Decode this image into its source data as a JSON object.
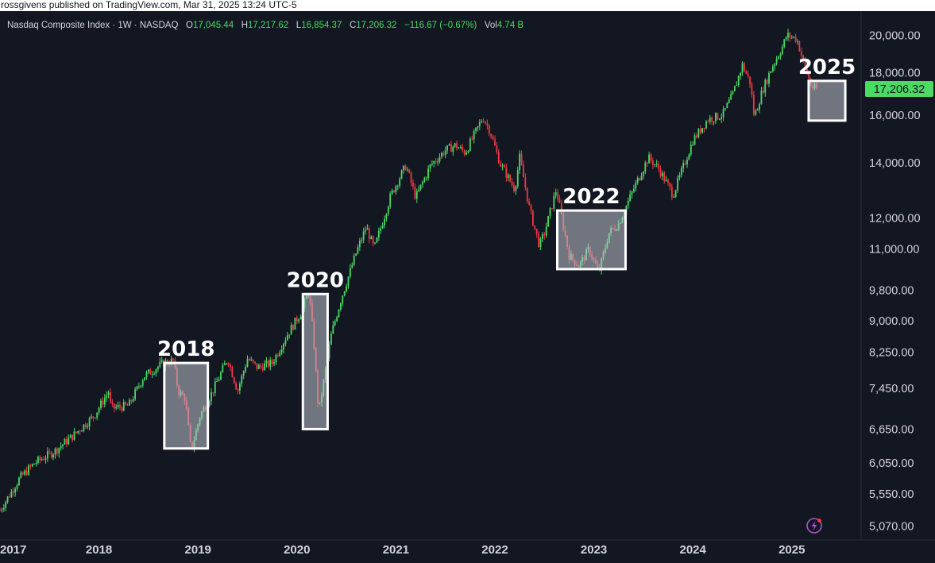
{
  "header": {
    "published": "rossgivens published on TradingView.com, Mar 31, 2025 13:24 UTC-5"
  },
  "legend": {
    "symbol": "Nasdaq Composite Index · 1W · NASDAQ",
    "o_key": "O",
    "o_val": "17,045.44",
    "h_key": "H",
    "h_val": "17,217.62",
    "l_key": "L",
    "l_val": "16,854.37",
    "c_key": "C",
    "c_val": "17,206.32",
    "change": "−116.67 (−0.67%)",
    "vol_key": "Vol",
    "vol_val": "4.74 B"
  },
  "colors": {
    "up": "#4cd964",
    "down": "#f23645",
    "background": "#131722",
    "grid": "#1e2230",
    "price_tag": "#4cd964",
    "box": "#ffffff"
  },
  "icons": {
    "bottom_right": "lightning-bolt-icon"
  },
  "chart_data": {
    "type": "candlestick",
    "scale": "log",
    "ylim": [
      4900,
      21200
    ],
    "xlim": [
      2017.0,
      2025.7
    ],
    "grid": false,
    "y_ticks": [
      {
        "value": 20000,
        "label": "20,000.00"
      },
      {
        "value": 18000,
        "label": "18,000.00"
      },
      {
        "value": 16000,
        "label": "16,000.00"
      },
      {
        "value": 14000,
        "label": "14,000.00"
      },
      {
        "value": 12000,
        "label": "12,000.00"
      },
      {
        "value": 11000,
        "label": "11,000.00"
      },
      {
        "value": 9800,
        "label": "9,800.00"
      },
      {
        "value": 9000,
        "label": "9,000.00"
      },
      {
        "value": 8250,
        "label": "8,250.00"
      },
      {
        "value": 7450,
        "label": "7,450.00"
      },
      {
        "value": 6650,
        "label": "6,650.00"
      },
      {
        "value": 6050,
        "label": "6,050.00"
      },
      {
        "value": 5550,
        "label": "5,550.00"
      },
      {
        "value": 5070,
        "label": "5,070.00"
      }
    ],
    "x_ticks": [
      {
        "value": 2017.0,
        "label": "2017"
      },
      {
        "value": 2018.0,
        "label": "2018"
      },
      {
        "value": 2019.0,
        "label": "2019"
      },
      {
        "value": 2020.0,
        "label": "2020"
      },
      {
        "value": 2021.0,
        "label": "2021"
      },
      {
        "value": 2022.0,
        "label": "2022"
      },
      {
        "value": 2023.0,
        "label": "2023"
      },
      {
        "value": 2024.0,
        "label": "2024"
      },
      {
        "value": 2025.0,
        "label": "2025"
      }
    ],
    "last_price": {
      "value": 17206.32,
      "label": "17,206.32"
    },
    "path": [
      [
        2017.0,
        5300
      ],
      [
        2017.2,
        5800
      ],
      [
        2017.35,
        6050
      ],
      [
        2017.55,
        6250
      ],
      [
        2017.75,
        6550
      ],
      [
        2017.95,
        6900
      ],
      [
        2018.1,
        7400
      ],
      [
        2018.12,
        7050
      ],
      [
        2018.3,
        7100
      ],
      [
        2018.45,
        7700
      ],
      [
        2018.65,
        8000
      ],
      [
        2018.75,
        8050
      ],
      [
        2018.8,
        7400
      ],
      [
        2018.87,
        7250
      ],
      [
        2018.93,
        6250
      ],
      [
        2019.02,
        6900
      ],
      [
        2019.15,
        7400
      ],
      [
        2019.3,
        8100
      ],
      [
        2019.4,
        7400
      ],
      [
        2019.5,
        8100
      ],
      [
        2019.6,
        7900
      ],
      [
        2019.75,
        8000
      ],
      [
        2019.9,
        8650
      ],
      [
        2020.05,
        9250
      ],
      [
        2020.12,
        9800
      ],
      [
        2020.17,
        8500
      ],
      [
        2020.22,
        6950
      ],
      [
        2020.27,
        7600
      ],
      [
        2020.35,
        8700
      ],
      [
        2020.45,
        9600
      ],
      [
        2020.6,
        10900
      ],
      [
        2020.7,
        11700
      ],
      [
        2020.78,
        11000
      ],
      [
        2020.95,
        12800
      ],
      [
        2021.1,
        13900
      ],
      [
        2021.2,
        12700
      ],
      [
        2021.35,
        13900
      ],
      [
        2021.5,
        14500
      ],
      [
        2021.6,
        14700
      ],
      [
        2021.7,
        14400
      ],
      [
        2021.88,
        15900
      ],
      [
        2021.95,
        15300
      ],
      [
        2022.05,
        14000
      ],
      [
        2022.2,
        13000
      ],
      [
        2022.25,
        14200
      ],
      [
        2022.35,
        12300
      ],
      [
        2022.45,
        11100
      ],
      [
        2022.5,
        11500
      ],
      [
        2022.62,
        13000
      ],
      [
        2022.75,
        10800
      ],
      [
        2022.85,
        10500
      ],
      [
        2022.95,
        11000
      ],
      [
        2023.05,
        10300
      ],
      [
        2023.15,
        11500
      ],
      [
        2023.25,
        11800
      ],
      [
        2023.4,
        13000
      ],
      [
        2023.55,
        14200
      ],
      [
        2023.65,
        13800
      ],
      [
        2023.8,
        12800
      ],
      [
        2023.9,
        13800
      ],
      [
        2024.0,
        14900
      ],
      [
        2024.15,
        15800
      ],
      [
        2024.3,
        16000
      ],
      [
        2024.4,
        16900
      ],
      [
        2024.5,
        18400
      ],
      [
        2024.58,
        17500
      ],
      [
        2024.62,
        15900
      ],
      [
        2024.7,
        17100
      ],
      [
        2024.8,
        18300
      ],
      [
        2024.9,
        19300
      ],
      [
        2024.95,
        20000
      ],
      [
        2025.05,
        19800
      ],
      [
        2025.12,
        18500
      ],
      [
        2025.2,
        17300
      ],
      [
        2025.25,
        17206
      ]
    ],
    "annotations": [
      {
        "label": "2018",
        "x0": 2018.66,
        "x1": 2019.1,
        "y_top": 8000,
        "y_bottom": 6300
      },
      {
        "label": "2020",
        "x0": 2020.06,
        "x1": 2020.31,
        "y_top": 9700,
        "y_bottom": 6650
      },
      {
        "label": "2022",
        "x0": 2022.63,
        "x1": 2023.32,
        "y_top": 12250,
        "y_bottom": 10400
      },
      {
        "label": "2025",
        "x0": 2025.17,
        "x1": 2025.54,
        "y_top": 17600,
        "y_bottom": 15750
      }
    ]
  }
}
